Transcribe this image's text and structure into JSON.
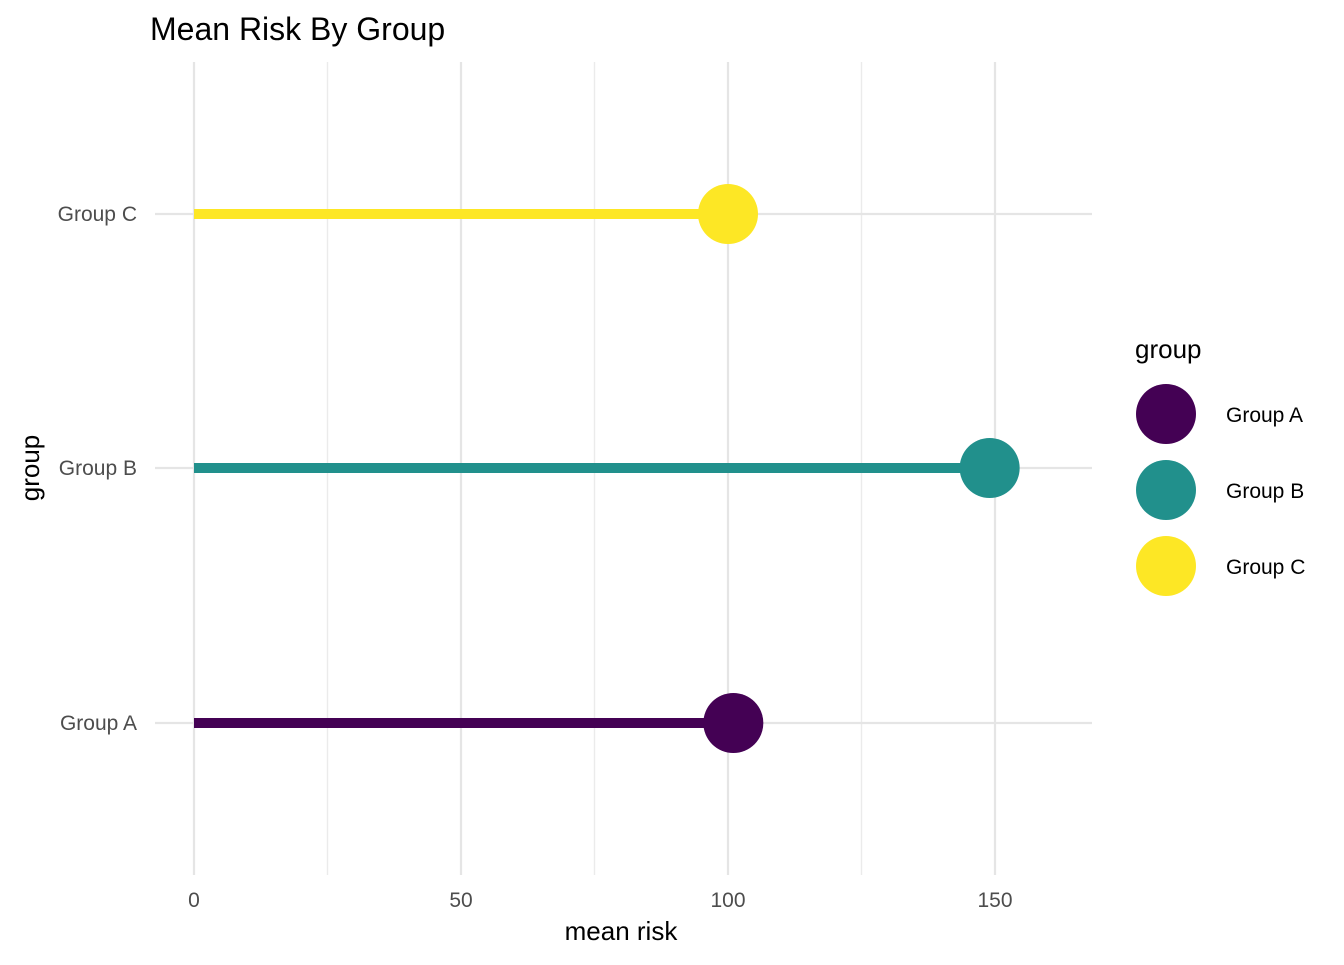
{
  "chart_data": {
    "type": "lollipop",
    "title": "Mean Risk By Group",
    "xlabel": "mean risk",
    "ylabel": "group",
    "xlim": [
      0,
      168
    ],
    "x_ticks": [
      0,
      50,
      100,
      150
    ],
    "x_minor_ticks": [
      25,
      75,
      125
    ],
    "x_tick_labels": [
      "0",
      "50",
      "100",
      "150"
    ],
    "categories": [
      "Group A",
      "Group B",
      "Group C"
    ],
    "values": [
      101,
      149,
      100
    ],
    "colors": [
      "#440154",
      "#21908C",
      "#FDE725"
    ],
    "grid": true,
    "legend": {
      "title": "group",
      "placement": "right",
      "entries": [
        "Group A",
        "Group B",
        "Group C"
      ]
    }
  }
}
